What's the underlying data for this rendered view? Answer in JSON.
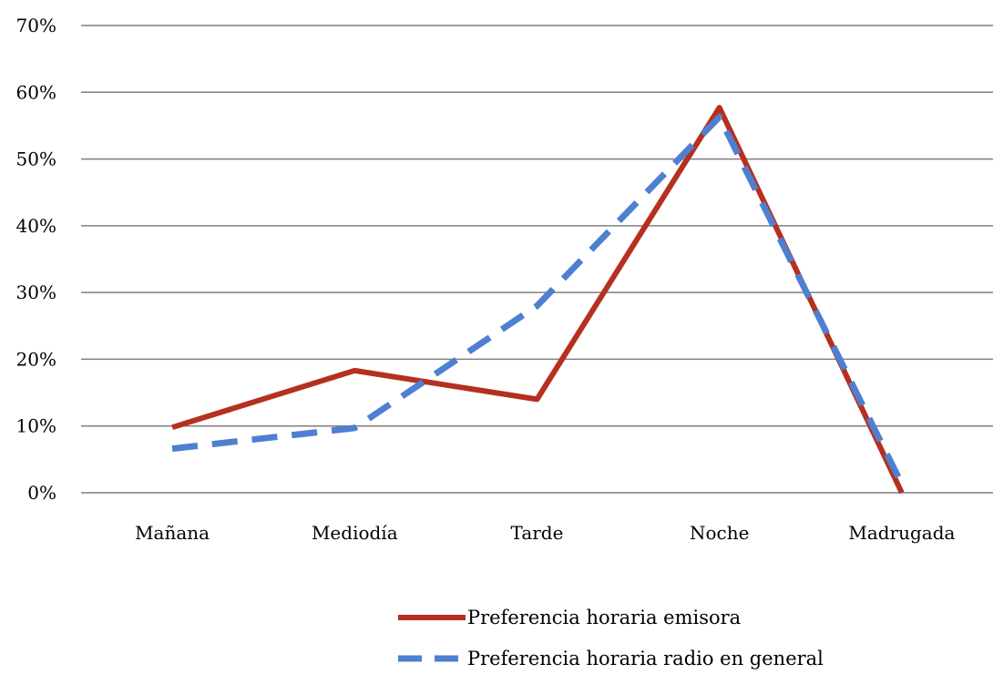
{
  "chart_data": {
    "type": "line",
    "categories": [
      "Mañana",
      "Mediodía",
      "Tarde",
      "Noche",
      "Madrugada"
    ],
    "series": [
      {
        "name": "Preferencia horaria emisora",
        "values": [
          0.098,
          0.183,
          0.14,
          0.577,
          0.0
        ],
        "color": "#b5301f",
        "style": "solid"
      },
      {
        "name": "Preferencia horaria radio en general",
        "values": [
          0.066,
          0.097,
          0.28,
          0.563,
          0.013
        ],
        "color": "#4f7fd0",
        "style": "dashed"
      }
    ],
    "ylim": [
      0,
      0.7
    ],
    "yticks": [
      "0%",
      "10%",
      "20%",
      "30%",
      "40%",
      "50%",
      "60%",
      "70%"
    ],
    "grid": true,
    "legend_position": "bottom-center"
  }
}
